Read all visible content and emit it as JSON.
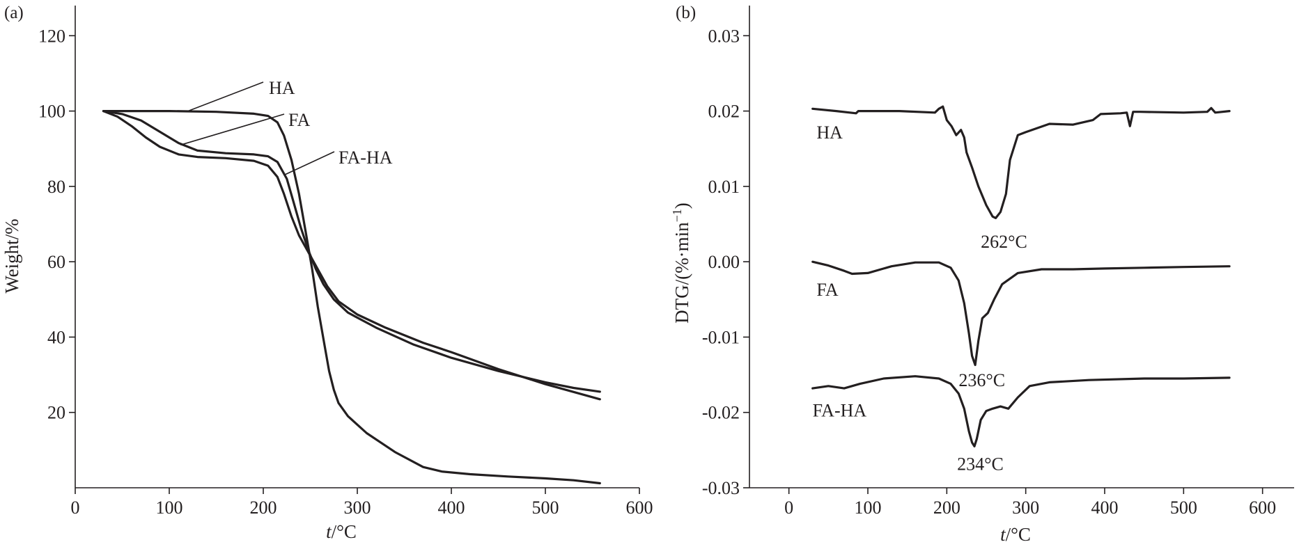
{
  "chart_data": [
    {
      "panel": "(a)",
      "type": "line",
      "xlabel_italic": "t",
      "xlabel_unit": "/°C",
      "ylabel": "Weight/%",
      "xlim": [
        0,
        600
      ],
      "ylim": [
        0,
        128
      ],
      "x_ticks": [
        0,
        100,
        200,
        300,
        400,
        500,
        600
      ],
      "y_ticks": [
        20,
        40,
        60,
        80,
        100,
        120
      ],
      "grid": false,
      "series": [
        {
          "name": "HA",
          "line_color": "#231f20",
          "x": [
            30,
            60,
            100,
            150,
            190,
            205,
            215,
            222,
            230,
            238,
            245,
            252,
            258,
            265,
            270,
            275,
            280,
            290,
            310,
            340,
            370,
            390,
            420,
            460,
            500,
            530,
            558
          ],
          "y": [
            100,
            100,
            100,
            99.8,
            99.3,
            98.7,
            97,
            93.5,
            87,
            78,
            68,
            58,
            48,
            38,
            31,
            26,
            22.5,
            19,
            14.5,
            9.5,
            5.5,
            4.3,
            3.6,
            3,
            2.5,
            2,
            1.2
          ]
        },
        {
          "name": "FA",
          "line_color": "#231f20",
          "x": [
            30,
            50,
            70,
            90,
            110,
            130,
            160,
            190,
            205,
            215,
            225,
            232,
            240,
            248,
            256,
            264,
            275,
            290,
            320,
            360,
            400,
            450,
            500,
            530,
            558
          ],
          "y": [
            100,
            99.2,
            97.5,
            94.5,
            91.5,
            89.5,
            88.8,
            88.5,
            88,
            86.5,
            82,
            76,
            69,
            63,
            58,
            54,
            50,
            46.5,
            42.5,
            38,
            34.5,
            31,
            28,
            26.5,
            25.5
          ]
        },
        {
          "name": "FA-HA",
          "line_color": "#231f20",
          "x": [
            30,
            45,
            60,
            75,
            90,
            110,
            130,
            160,
            190,
            205,
            215,
            222,
            230,
            238,
            248,
            258,
            268,
            280,
            300,
            330,
            370,
            400,
            450,
            500,
            558
          ],
          "y": [
            100,
            98.5,
            96,
            93,
            90.5,
            88.5,
            87.8,
            87.5,
            86.8,
            85.5,
            82.5,
            78,
            72,
            67,
            62.5,
            58,
            53.5,
            49.5,
            46,
            42.5,
            38.5,
            36,
            31.5,
            27.5,
            23.5
          ]
        }
      ],
      "annotations": [
        {
          "text": "HA",
          "points_to_x": 118,
          "points_to_y": 99.8
        },
        {
          "text": "FA",
          "points_to_x": 112,
          "points_to_y": 91
        },
        {
          "text": "FA-HA",
          "points_to_x": 222,
          "points_to_y": 83
        }
      ]
    },
    {
      "panel": "(b)",
      "type": "line",
      "xlabel_italic": "t",
      "xlabel_unit": "/°C",
      "ylabel": "DTG/(%·min",
      "ylabel_sup": "−1",
      "ylabel_close": ")",
      "xlim": [
        -50,
        640
      ],
      "ylim": [
        -0.03,
        0.034
      ],
      "x_ticks": [
        0,
        100,
        200,
        300,
        400,
        500,
        600
      ],
      "y_ticks": [
        "-0.03",
        "-0.02",
        "-0.01",
        "0.00",
        "0.01",
        "0.02",
        "0.03"
      ],
      "grid": false,
      "series": [
        {
          "name": "HA",
          "line_color": "#231f20",
          "x": [
            30,
            60,
            85,
            88,
            100,
            140,
            185,
            190,
            195,
            200,
            206,
            212,
            218,
            222,
            225,
            232,
            240,
            250,
            258,
            262,
            268,
            275,
            280,
            290,
            300,
            330,
            360,
            385,
            395,
            420,
            428,
            432,
            436,
            445,
            500,
            530,
            535,
            540,
            558
          ],
          "y": [
            0.0203,
            0.02,
            0.0197,
            0.02,
            0.02,
            0.02,
            0.0198,
            0.0203,
            0.0206,
            0.0188,
            0.018,
            0.0168,
            0.0175,
            0.0165,
            0.0145,
            0.0125,
            0.01,
            0.0075,
            0.006,
            0.0058,
            0.0066,
            0.009,
            0.0135,
            0.0168,
            0.0172,
            0.0183,
            0.0182,
            0.0188,
            0.0196,
            0.0197,
            0.0198,
            0.018,
            0.0199,
            0.0199,
            0.0198,
            0.0199,
            0.0204,
            0.0198,
            0.02
          ]
        },
        {
          "name": "FA",
          "line_color": "#231f20",
          "x": [
            30,
            50,
            70,
            80,
            100,
            130,
            160,
            190,
            205,
            215,
            222,
            228,
            232,
            236,
            240,
            245,
            252,
            260,
            270,
            290,
            320,
            360,
            400,
            450,
            500,
            558
          ],
          "y": [
            0.0,
            -0.0005,
            -0.0012,
            -0.0016,
            -0.0015,
            -0.0006,
            -0.0001,
            -0.0001,
            -0.0008,
            -0.0025,
            -0.0055,
            -0.0095,
            -0.0125,
            -0.0137,
            -0.0105,
            -0.0075,
            -0.0068,
            -0.005,
            -0.003,
            -0.0015,
            -0.001,
            -0.001,
            -0.0009,
            -0.0008,
            -0.0007,
            -0.0006
          ]
        },
        {
          "name": "FA-HA",
          "line_color": "#231f20",
          "x": [
            30,
            50,
            70,
            90,
            120,
            160,
            190,
            205,
            215,
            222,
            228,
            232,
            235,
            238,
            243,
            250,
            258,
            268,
            278,
            290,
            305,
            330,
            380,
            450,
            500,
            558
          ],
          "y": [
            -0.0168,
            -0.0165,
            -0.0168,
            -0.0162,
            -0.0155,
            -0.0152,
            -0.0155,
            -0.0162,
            -0.0175,
            -0.0195,
            -0.0225,
            -0.024,
            -0.0245,
            -0.0235,
            -0.021,
            -0.0198,
            -0.0195,
            -0.0192,
            -0.0195,
            -0.018,
            -0.0165,
            -0.016,
            -0.0157,
            -0.0155,
            -0.0155,
            -0.0154
          ]
        }
      ],
      "annotations": [
        {
          "text": "HA",
          "at_x": 35,
          "at_y": 0.0172
        },
        {
          "text": "FA",
          "at_x": 35,
          "at_y": -0.0037
        },
        {
          "text": "FA-HA",
          "at_x": 30,
          "at_y": -0.0197
        },
        {
          "text": "262°C",
          "at_x": 243,
          "at_y": 0.0027
        },
        {
          "text": "236°C",
          "at_x": 215,
          "at_y": -0.0157
        },
        {
          "text": "234°C",
          "at_x": 213,
          "at_y": -0.0268
        }
      ]
    }
  ]
}
